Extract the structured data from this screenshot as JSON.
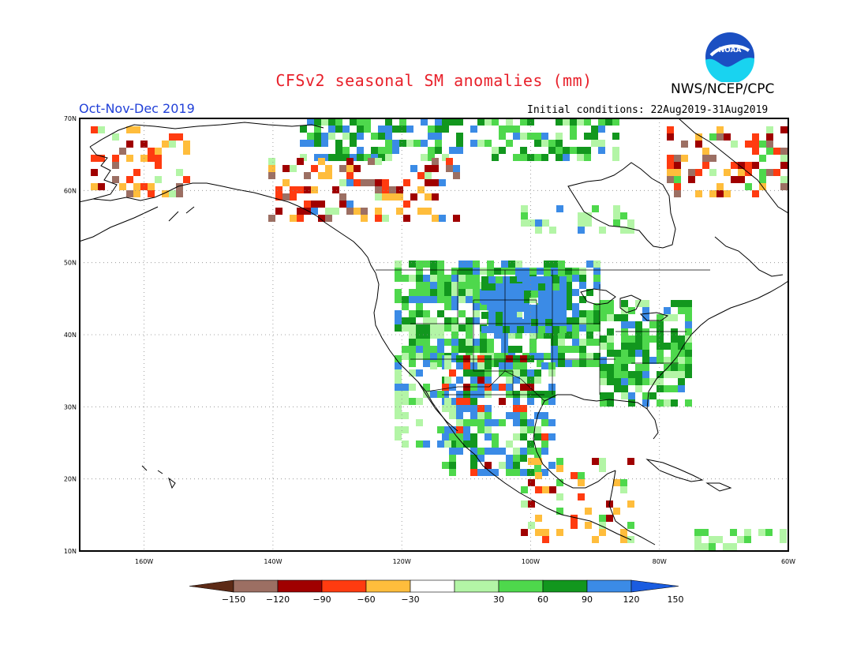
{
  "header": {
    "title": "CFSv2 seasonal SM anomalies (mm)",
    "agency": "NWS/NCEP/CPC",
    "logo_text": "NOAA",
    "period": "Oct-Nov-Dec 2019",
    "initial_conditions": "Initial conditions: 22Aug2019-31Aug2019"
  },
  "map": {
    "projection": "lat-lon",
    "lon_range": [
      -170,
      -60
    ],
    "lat_range": [
      10,
      70
    ],
    "grid_lines": "dotted",
    "lat_ticks": [
      "70N",
      "60N",
      "50N",
      "40N",
      "30N",
      "20N",
      "10N"
    ],
    "lon_ticks": [
      "160W",
      "140W",
      "120W",
      "100W",
      "80W",
      "60W"
    ]
  },
  "legend": {
    "labels": [
      "-150",
      "-120",
      "-90",
      "-60",
      "-30",
      "30",
      "60",
      "90",
      "120",
      "150"
    ],
    "colors": [
      "#5c2a16",
      "#9c6f63",
      "#a00000",
      "#ff3b10",
      "#ffbd3c",
      "#ffffff",
      "#b3f5a6",
      "#4ed84c",
      "#12971e",
      "#3b8be6",
      "#1a5ce0"
    ]
  },
  "colors": {
    "title": "#e8202a",
    "period": "#2140d8",
    "noaa_blue": "#1b4fc2",
    "noaa_cyan": "#19d3f0"
  }
}
